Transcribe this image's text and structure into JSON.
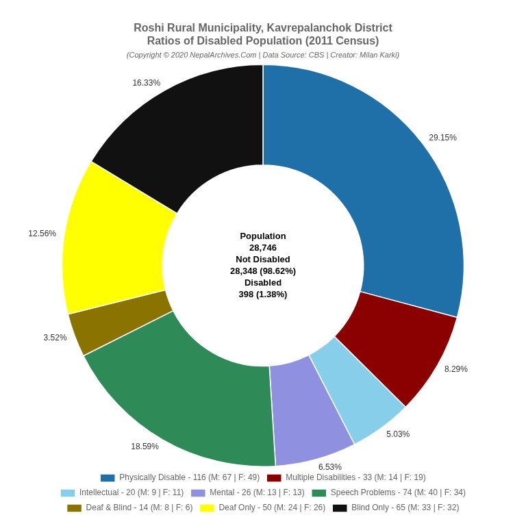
{
  "chart_data": {
    "type": "donut",
    "title": [
      "Roshi Rural Municipality, Kavrepalanchok District",
      "Ratios of Disabled Population (2011 Census)"
    ],
    "subtitle": "(Copyright © 2020 NepalArchives.Com | Data Source: CBS | Creator: Milan Karki)",
    "categories": [
      "Physically Disable - 116 (M: 67 | F: 49)",
      "Multiple Disabilities - 33 (M: 14 | F: 19)",
      "Intellectual - 20 (M: 9 | F: 11)",
      "Mental - 26 (M: 13 | F: 13)",
      "Speech Problems - 74 (M: 40 | F: 34)",
      "Deaf & Blind - 14 (M: 8 | F: 6)",
      "Deaf Only - 50 (M: 24 | F: 26)",
      "Blind Only - 65 (M: 33 | F: 32)"
    ],
    "values": [
      29.15,
      8.29,
      5.03,
      6.53,
      18.59,
      3.52,
      12.56,
      16.33
    ],
    "value_labels": [
      "29.15%",
      "8.29%",
      "5.03%",
      "6.53%",
      "18.59%",
      "3.52%",
      "12.56%",
      "16.33%"
    ],
    "colors": [
      "#1f6fa8",
      "#8b0000",
      "#87ceeb",
      "#9090e0",
      "#2e8b57",
      "#8b7300",
      "#ffff00",
      "#111111"
    ],
    "data_labels": true,
    "legend": "bottom",
    "annotations": [
      "Population",
      "28,746",
      "Not Disabled",
      "28,348 (98.62%)",
      "Disabled",
      "398 (1.38%)"
    ]
  }
}
